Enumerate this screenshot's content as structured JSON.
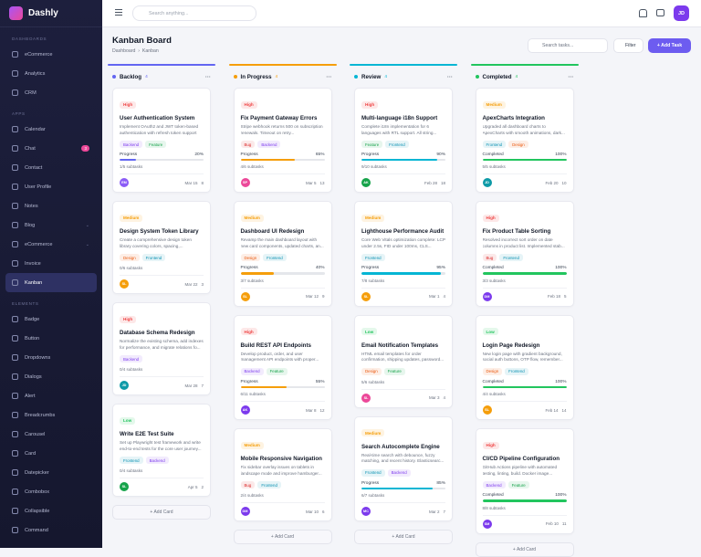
{
  "brand": "Dashly",
  "sidebar": [
    {
      "heading": "DASHBOARDS",
      "items": [
        {
          "label": "eCommerce"
        },
        {
          "label": "Analytics"
        },
        {
          "label": "CRM"
        }
      ]
    },
    {
      "heading": "APPS",
      "items": [
        {
          "label": "Calendar"
        },
        {
          "label": "Chat",
          "badge": "3"
        },
        {
          "label": "Contact"
        },
        {
          "label": "User Profile"
        },
        {
          "label": "Notes"
        },
        {
          "label": "Blog",
          "expandable": true
        },
        {
          "label": "eCommerce",
          "expandable": true
        },
        {
          "label": "Invoice"
        },
        {
          "label": "Kanban",
          "active": true
        }
      ]
    },
    {
      "heading": "ELEMENTS",
      "items": [
        {
          "label": "Badge"
        },
        {
          "label": "Button"
        },
        {
          "label": "Dropdowns"
        },
        {
          "label": "Dialogs"
        },
        {
          "label": "Alert"
        },
        {
          "label": "Breadcrumbs"
        },
        {
          "label": "Carousel"
        },
        {
          "label": "Card"
        },
        {
          "label": "Datepicker"
        },
        {
          "label": "Combobox"
        },
        {
          "label": "Collapsible"
        },
        {
          "label": "Command"
        }
      ]
    }
  ],
  "topbar": {
    "search_placeholder": "Search anything...",
    "avatar": "JD"
  },
  "header": {
    "title": "Kanban Board",
    "breadcrumb": [
      "Dashboard",
      "Kanban"
    ],
    "search_placeholder": "Search tasks...",
    "filter": "Filter",
    "add_task": "+ Add Task"
  },
  "board": {
    "add_card": "+ Add Card",
    "columns": [
      {
        "title": "Backlog",
        "count": 4,
        "color": "#6366f1",
        "cards": [
          {
            "priority": "High",
            "priority_color": "#ef4444",
            "title": "User Authentication System",
            "description": "Implement OAuth2 and JWT token-based authentication with refresh token support fo...",
            "tags": [
              {
                "text": "Backend",
                "color": "#7c3aed"
              },
              {
                "text": "Feature",
                "color": "#16a34a"
              }
            ],
            "progress": {
              "title": "Progress",
              "value": 20,
              "label": "20%",
              "color": "#6366f1"
            },
            "subtasks": "1/5 subtasks",
            "avatar": "EM",
            "avatar_color": "#8b5cf6",
            "date": "Mar 15",
            "comments": 8
          },
          {
            "priority": "Medium",
            "priority_color": "#f59e0b",
            "title": "Design System Token Library",
            "description": "Create a comprehensive design token library covering colors, spacing,...",
            "tags": [
              {
                "text": "Design",
                "color": "#ea580c"
              },
              {
                "text": "Frontend",
                "color": "#0891b2"
              }
            ],
            "subtasks": "0/6 subtasks",
            "avatar": "SL",
            "avatar_color": "#f59e0b",
            "date": "Mar 22",
            "comments": 3
          },
          {
            "priority": "High",
            "priority_color": "#ef4444",
            "title": "Database Schema Redesign",
            "description": "Normalize the existing schema, add indexes for performance, and migrate relations fo...",
            "tags": [
              {
                "text": "Backend",
                "color": "#7c3aed"
              }
            ],
            "subtasks": "0/4 subtasks",
            "avatar": "JD",
            "avatar_color": "#0e9aa7",
            "date": "Mar 28",
            "comments": 7
          },
          {
            "priority": "Low",
            "priority_color": "#22c55e",
            "title": "Write E2E Test Suite",
            "description": "Set up Playwright test framework and write end-to-end tests for the core user journey...",
            "tags": [
              {
                "text": "Frontend",
                "color": "#0891b2"
              },
              {
                "text": "Backend",
                "color": "#7c3aed"
              }
            ],
            "subtasks": "0/4 subtasks",
            "avatar": "SL",
            "avatar_color": "#16a34a",
            "date": "Apr 5",
            "comments": 2
          }
        ]
      },
      {
        "title": "In Progress",
        "count": 4,
        "color": "#f59e0b",
        "cards": [
          {
            "priority": "High",
            "priority_color": "#ef4444",
            "title": "Fix Payment Gateway Errors",
            "description": "Stripe webhook returns 500 on subscription renewals. Timeout on retry...",
            "tags": [
              {
                "text": "Bug",
                "color": "#dc2626"
              },
              {
                "text": "Backend",
                "color": "#7c3aed"
              }
            ],
            "progress": {
              "title": "Progress",
              "value": 65,
              "label": "65%",
              "color": "#f59e0b"
            },
            "subtasks": "4/6 subtasks",
            "avatar": "SP",
            "avatar_color": "#ec4899",
            "date": "Mar 5",
            "comments": 13
          },
          {
            "priority": "Medium",
            "priority_color": "#f59e0b",
            "title": "Dashboard UI Redesign",
            "description": "Revamp the main dashboard layout with new card components, updated charts, an...",
            "tags": [
              {
                "text": "Design",
                "color": "#ea580c"
              },
              {
                "text": "Frontend",
                "color": "#0891b2"
              }
            ],
            "progress": {
              "title": "Progress",
              "value": 40,
              "label": "40%",
              "color": "#f59e0b"
            },
            "subtasks": "3/7 subtasks",
            "avatar": "SL",
            "avatar_color": "#f59e0b",
            "date": "Mar 12",
            "comments": 9
          },
          {
            "priority": "High",
            "priority_color": "#ef4444",
            "title": "Build REST API Endpoints",
            "description": "Develop product, order, and user management API endpoints with proper...",
            "tags": [
              {
                "text": "Backend",
                "color": "#7c3aed"
              },
              {
                "text": "Feature",
                "color": "#16a34a"
              }
            ],
            "progress": {
              "title": "Progress",
              "value": 55,
              "label": "55%",
              "color": "#f59e0b"
            },
            "subtasks": "6/11 subtasks",
            "avatar": "AK",
            "avatar_color": "#7c3aed",
            "date": "Mar 8",
            "comments": 12
          },
          {
            "priority": "Medium",
            "priority_color": "#f59e0b",
            "title": "Mobile Responsive Navigation",
            "description": "Fix sidebar overlay issues on tablets in landscape mode and improve hamburger...",
            "tags": [
              {
                "text": "Bug",
                "color": "#dc2626"
              },
              {
                "text": "Frontend",
                "color": "#0891b2"
              }
            ],
            "subtasks": "2/4 subtasks",
            "avatar": "DM",
            "avatar_color": "#7c3aed",
            "date": "Mar 10",
            "comments": 6
          }
        ]
      },
      {
        "title": "Review",
        "count": 4,
        "color": "#06b6d4",
        "cards": [
          {
            "priority": "High",
            "priority_color": "#ef4444",
            "title": "Multi-language i18n Support",
            "description": "Complete i18n implementation for 6 languages with RTL support. All string...",
            "tags": [
              {
                "text": "Feature",
                "color": "#16a34a"
              },
              {
                "text": "Frontend",
                "color": "#0891b2"
              }
            ],
            "progress": {
              "title": "Progress",
              "value": 90,
              "label": "90%",
              "color": "#06b6d4"
            },
            "subtasks": "9/10 subtasks",
            "avatar": "AK",
            "avatar_color": "#16a34a",
            "date": "Feb 28",
            "comments": 18
          },
          {
            "priority": "Medium",
            "priority_color": "#f59e0b",
            "title": "Lighthouse Performance Audit",
            "description": "Core Web Vitals optimization complete: LCP under 2.5s, FID under 100ms, CLS...",
            "tags": [
              {
                "text": "Frontend",
                "color": "#0891b2"
              }
            ],
            "progress": {
              "title": "Progress",
              "value": 95,
              "label": "95%",
              "color": "#06b6d4"
            },
            "subtasks": "7/8 subtasks",
            "avatar": "SL",
            "avatar_color": "#f59e0b",
            "date": "Mar 1",
            "comments": 4
          },
          {
            "priority": "Low",
            "priority_color": "#22c55e",
            "title": "Email Notification Templates",
            "description": "HTML email templates for order confirmation, shipping updates, password...",
            "tags": [
              {
                "text": "Design",
                "color": "#ea580c"
              },
              {
                "text": "Feature",
                "color": "#16a34a"
              }
            ],
            "subtasks": "5/6 subtasks",
            "avatar": "SL",
            "avatar_color": "#ec4899",
            "date": "Mar 3",
            "comments": 4
          },
          {
            "priority": "Medium",
            "priority_color": "#f59e0b",
            "title": "Search Autocomplete Engine",
            "description": "Real-time search with debounce, fuzzy matching, and recent history. Elasticsearc...",
            "tags": [
              {
                "text": "Frontend",
                "color": "#0891b2"
              },
              {
                "text": "Backend",
                "color": "#7c3aed"
              }
            ],
            "progress": {
              "title": "Progress",
              "value": 85,
              "label": "85%",
              "color": "#06b6d4"
            },
            "subtasks": "6/7 subtasks",
            "avatar": "MC",
            "avatar_color": "#7c3aed",
            "date": "Mar 2",
            "comments": 7
          }
        ]
      },
      {
        "title": "Completed",
        "count": 4,
        "color": "#22c55e",
        "cards": [
          {
            "priority": "Medium",
            "priority_color": "#f59e0b",
            "title": "ApexCharts Integration",
            "description": "Upgraded all dashboard charts to ApexCharts with smooth animations, dark...",
            "tags": [
              {
                "text": "Frontend",
                "color": "#0891b2"
              },
              {
                "text": "Design",
                "color": "#ea580c"
              }
            ],
            "progress": {
              "title": "Completed",
              "value": 100,
              "label": "100%",
              "color": "#22c55e"
            },
            "subtasks": "5/5 subtasks",
            "avatar": "JD",
            "avatar_color": "#0e9aa7",
            "date": "Feb 20",
            "comments": 10
          },
          {
            "priority": "High",
            "priority_color": "#ef4444",
            "title": "Fix Product Table Sorting",
            "description": "Resolved incorrect sort order on date columns in product list. Implemented stab...",
            "tags": [
              {
                "text": "Bug",
                "color": "#dc2626"
              },
              {
                "text": "Frontend",
                "color": "#0891b2"
              }
            ],
            "progress": {
              "title": "Completed",
              "value": 100,
              "label": "100%",
              "color": "#22c55e"
            },
            "subtasks": "3/3 subtasks",
            "avatar": "DM",
            "avatar_color": "#7c3aed",
            "date": "Feb 18",
            "comments": 5
          },
          {
            "priority": "Low",
            "priority_color": "#22c55e",
            "title": "Login Page Redesign",
            "description": "New login page with gradient background, social auth buttons, OTP flow, remember...",
            "tags": [
              {
                "text": "Design",
                "color": "#ea580c"
              },
              {
                "text": "Frontend",
                "color": "#0891b2"
              }
            ],
            "progress": {
              "title": "Completed",
              "value": 100,
              "label": "100%",
              "color": "#22c55e"
            },
            "subtasks": "4/4 subtasks",
            "avatar": "SL",
            "avatar_color": "#f59e0b",
            "date": "Feb 14",
            "comments": 14
          },
          {
            "priority": "High",
            "priority_color": "#ef4444",
            "title": "CI/CD Pipeline Configuration",
            "description": "GitHub Actions pipeline with automated testing, linting, build. Docker image...",
            "tags": [
              {
                "text": "Backend",
                "color": "#7c3aed"
              },
              {
                "text": "Feature",
                "color": "#16a34a"
              }
            ],
            "progress": {
              "title": "Completed",
              "value": 100,
              "label": "100%",
              "color": "#22c55e"
            },
            "subtasks": "8/8 subtasks",
            "avatar": "SM",
            "avatar_color": "#7c3aed",
            "date": "Feb 10",
            "comments": 11
          }
        ]
      }
    ]
  }
}
